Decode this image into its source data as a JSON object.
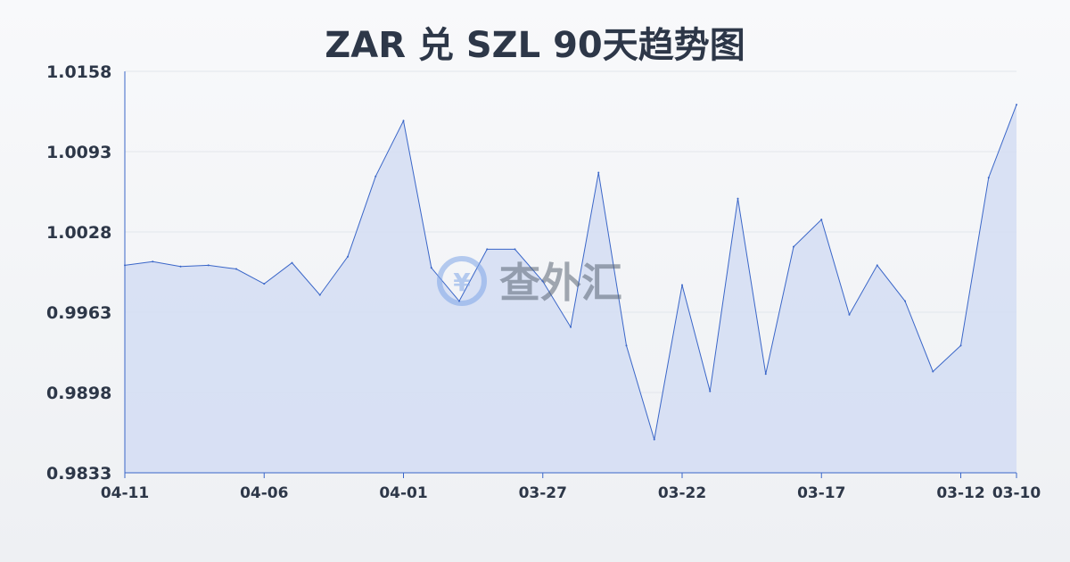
{
  "chart_data": {
    "type": "area",
    "title": "ZAR 兑 SZL 90天趋势图",
    "watermark": "查外汇",
    "ylim": [
      0.9833,
      1.0158
    ],
    "y_ticks": [
      "1.0158",
      "1.0093",
      "1.0028",
      "0.9963",
      "0.9898",
      "0.9833"
    ],
    "x_ticks": [
      {
        "label": "04-11",
        "index": 0
      },
      {
        "label": "04-06",
        "index": 5
      },
      {
        "label": "04-01",
        "index": 10
      },
      {
        "label": "03-27",
        "index": 15
      },
      {
        "label": "03-22",
        "index": 20
      },
      {
        "label": "03-17",
        "index": 25
      },
      {
        "label": "03-12",
        "index": 30
      },
      {
        "label": "03-10",
        "index": 32
      }
    ],
    "values": [
      1.0001,
      1.0004,
      1.0,
      1.0001,
      0.9998,
      0.9986,
      1.0003,
      0.9977,
      1.0008,
      1.0073,
      1.0118,
      0.9999,
      0.9972,
      1.0014,
      1.0014,
      0.9988,
      0.9951,
      1.0076,
      0.9936,
      0.986,
      0.9985,
      0.9899,
      1.0055,
      0.9913,
      1.0016,
      1.0038,
      0.9961,
      1.0001,
      0.9972,
      0.9915,
      0.9936,
      1.0072,
      1.0131
    ],
    "grid": true,
    "colors": {
      "line": "#3a66c8",
      "fill": "#d3ddf3",
      "text": "#2d3748"
    }
  }
}
